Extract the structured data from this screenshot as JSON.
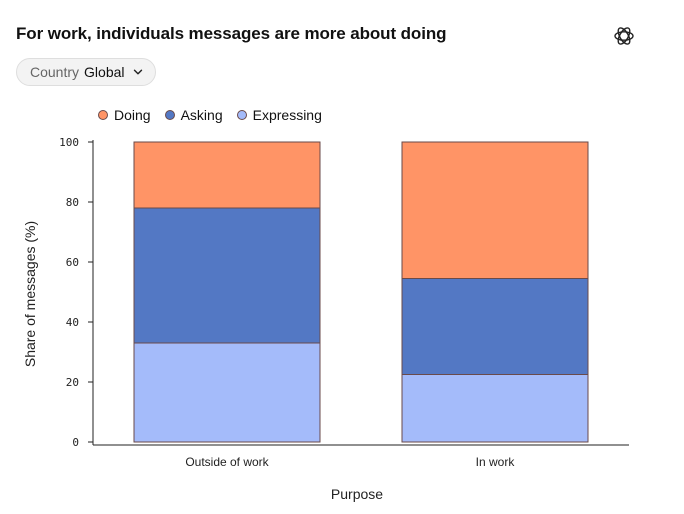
{
  "header": {
    "title": "For work, individuals messages are more about doing",
    "logo_icon": "openai-logo-icon"
  },
  "filter": {
    "label": "Country",
    "value": "Global",
    "icon": "chevron-down-icon"
  },
  "chart_data": {
    "type": "bar",
    "stacked": true,
    "categories": [
      "Outside of work",
      "In work"
    ],
    "series": [
      {
        "name": "Expressing",
        "color": "#a4bbfa",
        "values": [
          33,
          22.5
        ]
      },
      {
        "name": "Asking",
        "color": "#5378c4",
        "values": [
          45,
          32
        ]
      },
      {
        "name": "Doing",
        "color": "#ff9466",
        "values": [
          22,
          45.5
        ]
      }
    ],
    "legend_order": [
      "Doing",
      "Asking",
      "Expressing"
    ],
    "xlabel": "Purpose",
    "ylabel": "Share of messages (%)",
    "ylim": [
      0,
      100
    ],
    "yticks": [
      0,
      20,
      40,
      60,
      80,
      100
    ],
    "grid": false,
    "legend_position": "top-left",
    "bar_outline_color": "#6a4a4a"
  }
}
